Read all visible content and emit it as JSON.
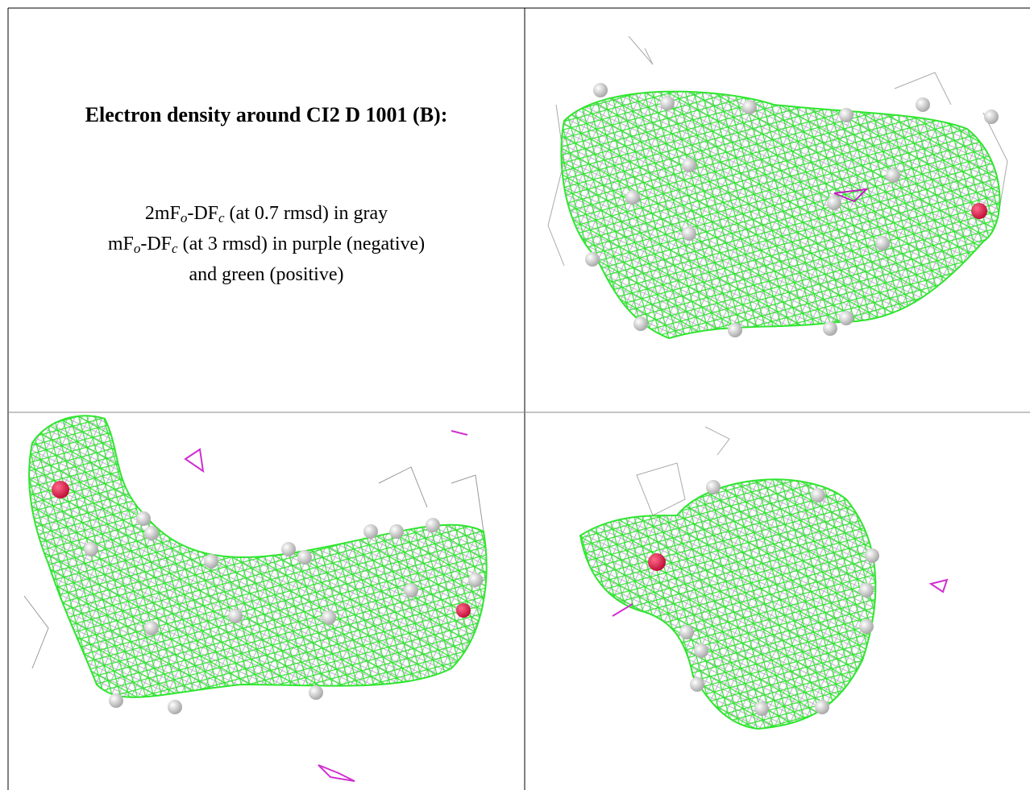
{
  "caption": {
    "title": "Electron density around CI2 D 1001 (B):",
    "lines": [
      [
        {
          "text": "2mF"
        },
        {
          "text": "o",
          "sub": true
        },
        {
          "text": "-DF"
        },
        {
          "text": "c",
          "sub": true
        },
        {
          "text": " (at 0.7 rmsd) in gray"
        }
      ],
      [
        {
          "text": "mF"
        },
        {
          "text": "o",
          "sub": true
        },
        {
          "text": "-DF"
        },
        {
          "text": "c",
          "sub": true
        },
        {
          "text": " (at 3 rmsd) in purple (negative)"
        }
      ],
      [
        {
          "text": "and green (positive)"
        }
      ]
    ]
  }
}
